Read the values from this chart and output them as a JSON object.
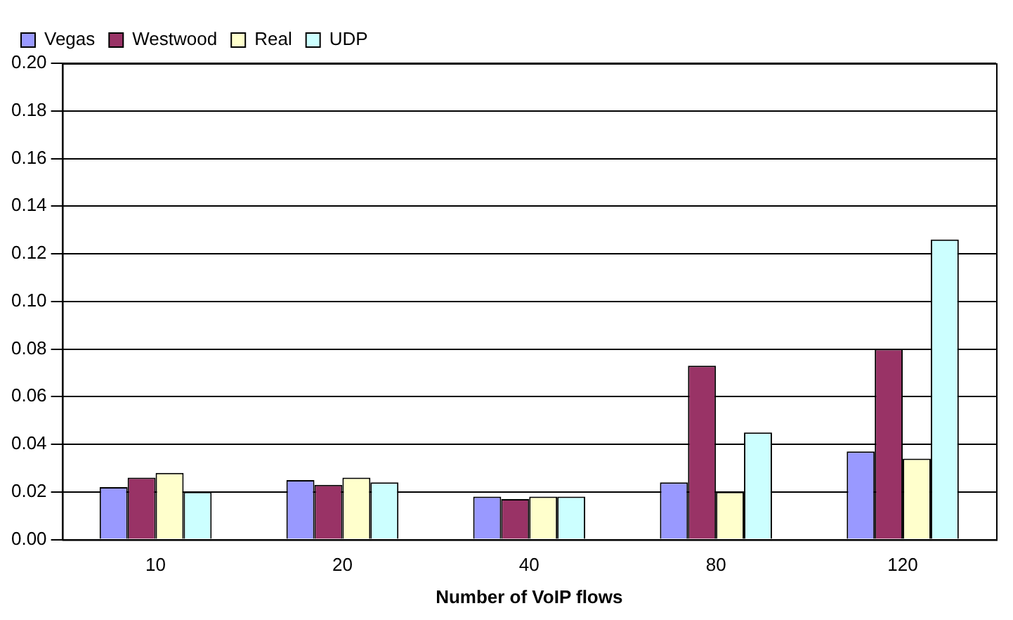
{
  "chart_data": {
    "type": "bar",
    "xlabel": "Number of VoIP flows",
    "categories": [
      "10",
      "20",
      "40",
      "80",
      "120"
    ],
    "series": [
      {
        "name": "Vegas",
        "color": "#9999ff",
        "values": [
          0.022,
          0.025,
          0.018,
          0.024,
          0.037
        ]
      },
      {
        "name": "Westwood",
        "color": "#993366",
        "values": [
          0.026,
          0.023,
          0.017,
          0.073,
          0.08
        ]
      },
      {
        "name": "Real",
        "color": "#ffffcc",
        "values": [
          0.028,
          0.026,
          0.018,
          0.02,
          0.034
        ]
      },
      {
        "name": "UDP",
        "color": "#ccffff",
        "values": [
          0.02,
          0.024,
          0.018,
          0.045,
          0.126
        ]
      }
    ],
    "ylim": [
      0,
      0.2
    ],
    "yticks": [
      {
        "value": 0,
        "label": "0.00"
      },
      {
        "value": 0.02,
        "label": "0.02"
      },
      {
        "value": 0.04,
        "label": "0.04"
      },
      {
        "value": 0.06,
        "label": "0.06"
      },
      {
        "value": 0.08,
        "label": "0.08"
      },
      {
        "value": 0.1,
        "label": "0.10"
      },
      {
        "value": 0.12,
        "label": "0.12"
      },
      {
        "value": 0.14,
        "label": "0.14"
      },
      {
        "value": 0.16,
        "label": "0.16"
      },
      {
        "value": 0.18,
        "label": "0.18"
      },
      {
        "value": 0.2,
        "label": "0.20"
      }
    ],
    "grid": "y",
    "legend": "top left"
  }
}
